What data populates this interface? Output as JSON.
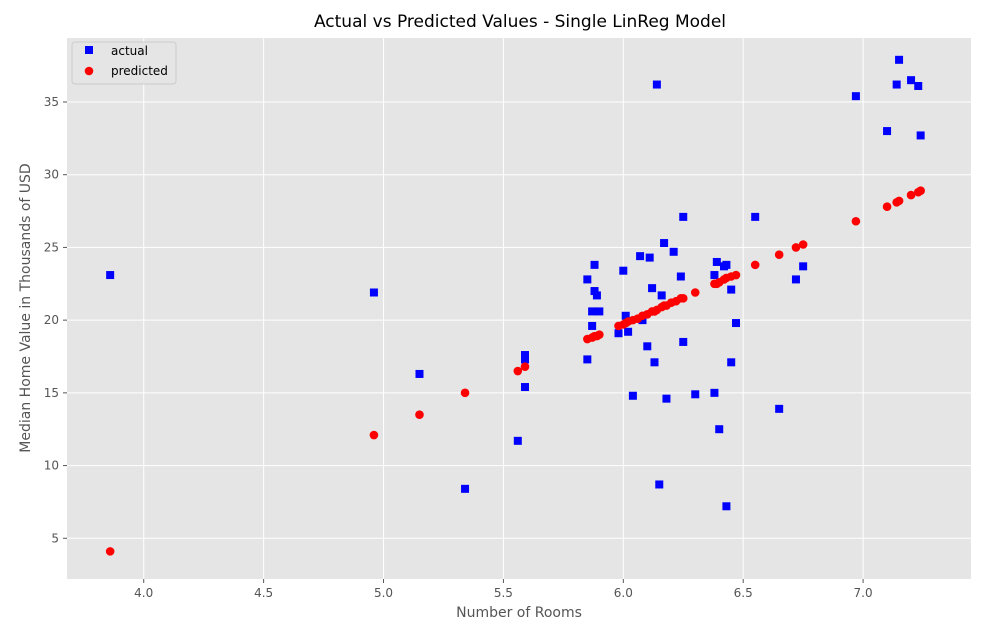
{
  "chart_data": {
    "type": "scatter",
    "title": "Actual vs Predicted Values - Single LinReg Model",
    "xlabel": "Number of Rooms",
    "ylabel": "Median Home Value in Thousands of USD",
    "xlim": [
      3.68,
      7.45
    ],
    "ylim": [
      2.2,
      39.4
    ],
    "xticks": [
      "4.0",
      "4.5",
      "5.0",
      "5.5",
      "6.0",
      "6.5",
      "7.0"
    ],
    "yticks": [
      "5",
      "10",
      "15",
      "20",
      "25",
      "30",
      "35"
    ],
    "grid": true,
    "legend_position": "top-left",
    "series": [
      {
        "name": "actual",
        "marker": "square",
        "color": "#0000ff",
        "points": [
          [
            3.86,
            23.1
          ],
          [
            4.96,
            21.9
          ],
          [
            5.15,
            16.3
          ],
          [
            5.34,
            8.4
          ],
          [
            5.56,
            11.7
          ],
          [
            5.59,
            17.6
          ],
          [
            5.59,
            17.3
          ],
          [
            5.59,
            15.4
          ],
          [
            5.85,
            22.8
          ],
          [
            5.85,
            17.3
          ],
          [
            5.87,
            20.6
          ],
          [
            5.87,
            19.6
          ],
          [
            5.88,
            23.8
          ],
          [
            5.88,
            22.0
          ],
          [
            5.89,
            21.7
          ],
          [
            5.9,
            20.6
          ],
          [
            5.98,
            19.1
          ],
          [
            6.0,
            23.4
          ],
          [
            6.01,
            20.3
          ],
          [
            6.02,
            19.2
          ],
          [
            6.04,
            14.8
          ],
          [
            6.07,
            24.4
          ],
          [
            6.08,
            20.0
          ],
          [
            6.1,
            18.2
          ],
          [
            6.11,
            24.3
          ],
          [
            6.12,
            22.2
          ],
          [
            6.13,
            17.1
          ],
          [
            6.14,
            36.2
          ],
          [
            6.15,
            8.7
          ],
          [
            6.16,
            21.7
          ],
          [
            6.17,
            25.3
          ],
          [
            6.18,
            14.6
          ],
          [
            6.21,
            24.7
          ],
          [
            6.24,
            23.0
          ],
          [
            6.25,
            27.1
          ],
          [
            6.25,
            18.5
          ],
          [
            6.3,
            14.9
          ],
          [
            6.38,
            23.1
          ],
          [
            6.38,
            15.0
          ],
          [
            6.39,
            24.0
          ],
          [
            6.4,
            12.5
          ],
          [
            6.42,
            23.7
          ],
          [
            6.43,
            23.8
          ],
          [
            6.43,
            7.2
          ],
          [
            6.45,
            22.1
          ],
          [
            6.45,
            17.1
          ],
          [
            6.47,
            19.8
          ],
          [
            6.55,
            27.1
          ],
          [
            6.65,
            13.9
          ],
          [
            6.72,
            22.8
          ],
          [
            6.75,
            23.7
          ],
          [
            6.97,
            35.4
          ],
          [
            7.1,
            33.0
          ],
          [
            7.14,
            36.2
          ],
          [
            7.15,
            37.9
          ],
          [
            7.2,
            36.5
          ],
          [
            7.23,
            36.1
          ],
          [
            7.24,
            32.7
          ]
        ]
      },
      {
        "name": "predicted",
        "marker": "circle",
        "color": "#ff0000",
        "points": [
          [
            3.86,
            4.1
          ],
          [
            4.96,
            12.1
          ],
          [
            5.15,
            13.5
          ],
          [
            5.34,
            15.0
          ],
          [
            5.56,
            16.5
          ],
          [
            5.59,
            16.8
          ],
          [
            5.85,
            18.7
          ],
          [
            5.87,
            18.8
          ],
          [
            5.88,
            18.9
          ],
          [
            5.89,
            18.9
          ],
          [
            5.9,
            19.0
          ],
          [
            5.98,
            19.6
          ],
          [
            6.0,
            19.7
          ],
          [
            6.01,
            19.8
          ],
          [
            6.02,
            19.9
          ],
          [
            6.04,
            20.0
          ],
          [
            6.06,
            20.1
          ],
          [
            6.08,
            20.3
          ],
          [
            6.1,
            20.4
          ],
          [
            6.12,
            20.6
          ],
          [
            6.13,
            20.6
          ],
          [
            6.14,
            20.7
          ],
          [
            6.16,
            20.9
          ],
          [
            6.17,
            21.0
          ],
          [
            6.18,
            21.0
          ],
          [
            6.2,
            21.2
          ],
          [
            6.22,
            21.3
          ],
          [
            6.24,
            21.5
          ],
          [
            6.25,
            21.5
          ],
          [
            6.3,
            21.9
          ],
          [
            6.38,
            22.5
          ],
          [
            6.39,
            22.5
          ],
          [
            6.4,
            22.6
          ],
          [
            6.42,
            22.8
          ],
          [
            6.43,
            22.9
          ],
          [
            6.45,
            23.0
          ],
          [
            6.47,
            23.1
          ],
          [
            6.55,
            23.8
          ],
          [
            6.65,
            24.5
          ],
          [
            6.72,
            25.0
          ],
          [
            6.75,
            25.2
          ],
          [
            6.97,
            26.8
          ],
          [
            7.1,
            27.8
          ],
          [
            7.14,
            28.1
          ],
          [
            7.15,
            28.2
          ],
          [
            7.2,
            28.6
          ],
          [
            7.23,
            28.8
          ],
          [
            7.24,
            28.9
          ]
        ]
      }
    ]
  }
}
